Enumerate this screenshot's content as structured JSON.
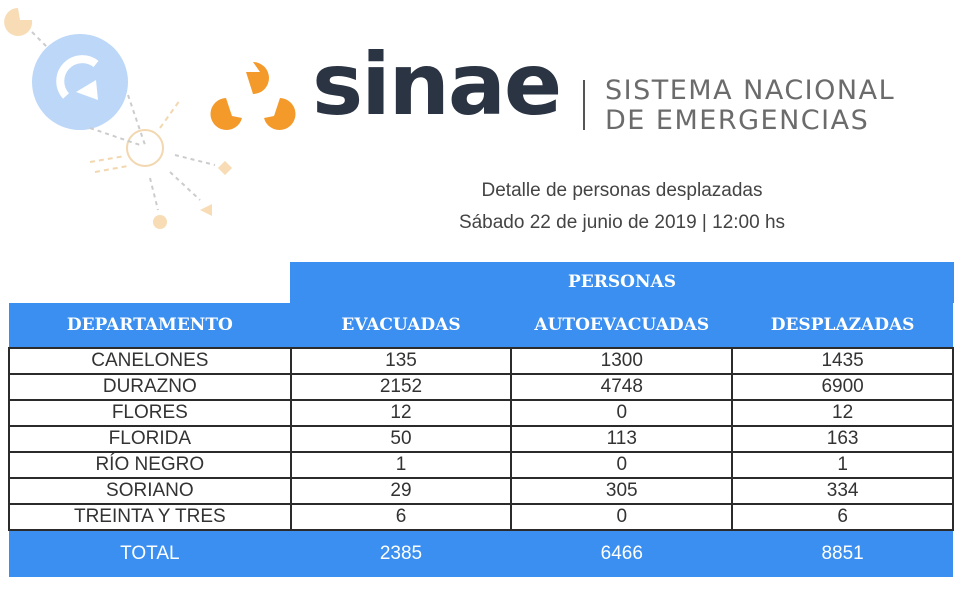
{
  "header": {
    "brand": "sinae",
    "tagline_line1": "SISTEMA NACIONAL",
    "tagline_line2": "DE EMERGENCIAS",
    "subtitle": "Detalle de personas desplazadas",
    "date_line": "Sábado 22 de junio de 2019 | 12:00 hs"
  },
  "colors": {
    "accent_blue": "#3a8ff0",
    "logo_orange": "#f39a2b",
    "brand_dark": "#2b3443"
  },
  "table": {
    "group_header": "PERSONAS",
    "columns": [
      "DEPARTAMENTO",
      "EVACUADAS",
      "AUTOEVACUADAS",
      "DESPLAZADAS"
    ],
    "rows": [
      [
        "CANELONES",
        "135",
        "1300",
        "1435"
      ],
      [
        "DURAZNO",
        "2152",
        "4748",
        "6900"
      ],
      [
        "FLORES",
        "12",
        "0",
        "12"
      ],
      [
        "FLORIDA",
        "50",
        "113",
        "163"
      ],
      [
        "RÍO NEGRO",
        "1",
        "0",
        "1"
      ],
      [
        "SORIANO",
        "29",
        "305",
        "334"
      ],
      [
        "TREINTA Y TRES",
        "6",
        "0",
        "6"
      ]
    ],
    "total": [
      "TOTAL",
      "2385",
      "6466",
      "8851"
    ]
  }
}
